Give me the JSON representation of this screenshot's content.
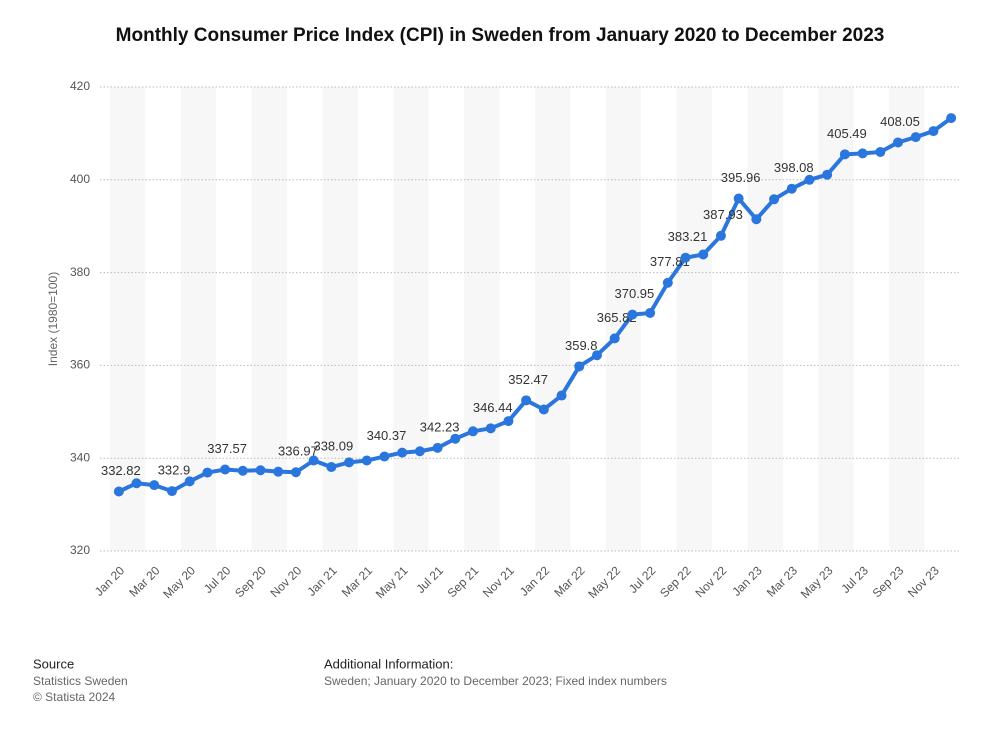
{
  "chart_data": {
    "type": "line",
    "title": "Monthly Consumer Price Index (CPI) in Sweden from January 2020 to December 2023",
    "y_axis_label": "Index (1980=100)",
    "categories": [
      "Jan 20",
      null,
      "Mar 20",
      null,
      "May 20",
      null,
      "Jul 20",
      null,
      "Sep 20",
      null,
      "Nov 20",
      null,
      "Jan 21",
      null,
      "Mar 21",
      null,
      "May 21",
      null,
      "Jul 21",
      null,
      "Sep 21",
      null,
      "Nov 21",
      null,
      "Jan 22",
      null,
      "Mar 22",
      null,
      "May 22",
      null,
      "Jul 22",
      null,
      "Sep 22",
      null,
      "Nov 22",
      null,
      "Jan 23",
      null,
      "Mar 23",
      null,
      "May 23",
      null,
      "Jul 23",
      null,
      "Sep 23",
      null,
      "Nov 23",
      null
    ],
    "series": [
      {
        "name": "CPI",
        "color": "#2a76dd",
        "values": [
          332.82,
          334.6,
          334.2,
          332.9,
          335.0,
          336.9,
          337.57,
          337.3,
          337.4,
          337.1,
          336.97,
          339.5,
          338.09,
          339.1,
          339.5,
          340.37,
          341.2,
          341.5,
          342.23,
          344.2,
          345.8,
          346.44,
          348.0,
          352.47,
          350.5,
          353.5,
          359.8,
          362.2,
          365.82,
          370.95,
          371.3,
          377.81,
          383.21,
          383.9,
          387.93,
          395.96,
          391.5,
          395.8,
          398.08,
          400.0,
          401.1,
          405.49,
          405.7,
          406.0,
          408.05,
          409.2,
          410.5,
          413.3
        ],
        "value_labels": [
          "332.82",
          null,
          null,
          "332.9",
          null,
          null,
          "337.57",
          null,
          null,
          null,
          "336.97",
          null,
          "338.09",
          null,
          null,
          "340.37",
          null,
          null,
          "342.23",
          null,
          null,
          "346.44",
          null,
          "352.47",
          null,
          null,
          "359.8",
          null,
          "365.82",
          "370.95",
          null,
          "377.81",
          "383.21",
          null,
          "387.93",
          "395.96",
          null,
          null,
          "398.08",
          null,
          null,
          "405.49",
          null,
          null,
          "408.05",
          null,
          null,
          null
        ]
      }
    ],
    "ylim": [
      320,
      420
    ],
    "yticks": [
      320,
      340,
      360,
      380,
      400,
      420
    ],
    "grid": true
  },
  "footer": {
    "source_heading": "Source",
    "source": "Statistics Sweden",
    "copyright": "© Statista 2024",
    "info_heading": "Additional Information:",
    "info": "Sweden; January 2020 to December 2023; Fixed index numbers"
  }
}
